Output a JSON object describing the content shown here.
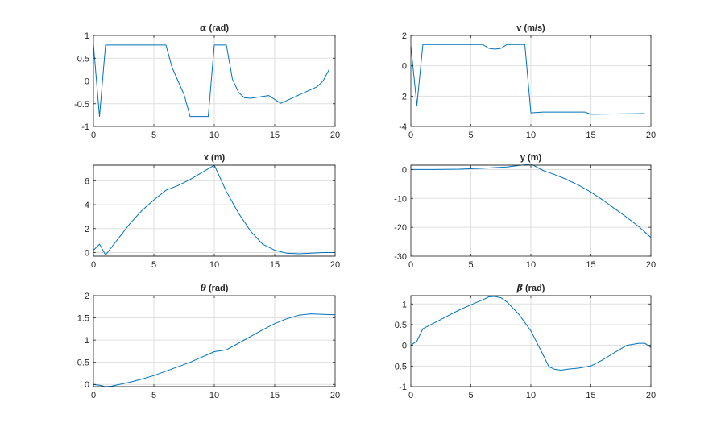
{
  "chart_data": [
    {
      "type": "line",
      "title_greek": "α",
      "title": " (rad)",
      "xlim": [
        0,
        20
      ],
      "ylim": [
        -1,
        1
      ],
      "xticks": [
        0,
        5,
        10,
        15,
        20
      ],
      "yticks": [
        -1,
        -0.5,
        0,
        0.5,
        1
      ],
      "grid": true,
      "color": "#0072BD",
      "series": [
        {
          "x": [
            0,
            0.5,
            1,
            6,
            6.5,
            7.5,
            8,
            9.5,
            10,
            11,
            11.5,
            12,
            12.5,
            13,
            14.5,
            15.5,
            18.5,
            19,
            19.5
          ],
          "y": [
            0.8,
            -0.78,
            0.79,
            0.79,
            0.3,
            -0.3,
            -0.78,
            -0.78,
            0.79,
            0.79,
            0.04,
            -0.25,
            -0.37,
            -0.38,
            -0.32,
            -0.49,
            -0.13,
            0.0,
            0.25
          ]
        }
      ]
    },
    {
      "type": "line",
      "title": "v (m/s)",
      "xlim": [
        0,
        20
      ],
      "ylim": [
        -4,
        2
      ],
      "xticks": [
        0,
        5,
        10,
        15,
        20
      ],
      "yticks": [
        -4,
        -2,
        0,
        2
      ],
      "grid": true,
      "color": "#0072BD",
      "series": [
        {
          "x": [
            0,
            0.5,
            1,
            6,
            6.5,
            7,
            7.5,
            8,
            9.5,
            10,
            11,
            14.5,
            15,
            19.5
          ],
          "y": [
            1.3,
            -2.6,
            1.4,
            1.4,
            1.15,
            1.1,
            1.15,
            1.4,
            1.4,
            -3.1,
            -3.05,
            -3.05,
            -3.2,
            -3.15
          ]
        }
      ]
    },
    {
      "type": "line",
      "title": "x (m)",
      "xlim": [
        0,
        20
      ],
      "ylim": [
        -0.3,
        7.3
      ],
      "xticks": [
        0,
        5,
        10,
        15,
        20
      ],
      "yticks": [
        0,
        2,
        4,
        6
      ],
      "grid": true,
      "color": "#0072BD",
      "series": [
        {
          "x": [
            0,
            0.5,
            1,
            2,
            3,
            4,
            5,
            6,
            7,
            8,
            9,
            10,
            11,
            12,
            13,
            14,
            15,
            16,
            17,
            18,
            19,
            20
          ],
          "y": [
            0.2,
            0.7,
            -0.2,
            1.1,
            2.4,
            3.5,
            4.4,
            5.2,
            5.6,
            6.1,
            6.7,
            7.3,
            5.1,
            3.3,
            1.8,
            0.7,
            0.2,
            -0.05,
            -0.1,
            -0.05,
            0.0,
            0.0
          ]
        }
      ]
    },
    {
      "type": "line",
      "title": "y (m)",
      "xlim": [
        0,
        20
      ],
      "ylim": [
        -30,
        1.5
      ],
      "xticks": [
        0,
        5,
        10,
        15,
        20
      ],
      "yticks": [
        -30,
        -20,
        -10,
        0
      ],
      "grid": true,
      "color": "#0072BD",
      "series": [
        {
          "x": [
            0,
            2,
            4,
            6,
            8,
            10,
            11,
            12,
            13,
            14,
            15,
            16,
            17,
            18,
            19,
            20
          ],
          "y": [
            0,
            0,
            0.1,
            0.4,
            0.9,
            1.9,
            -0.3,
            -1.8,
            -3.5,
            -5.5,
            -7.8,
            -10.6,
            -13.6,
            -16.6,
            -19.8,
            -23.5
          ]
        }
      ]
    },
    {
      "type": "line",
      "title_greek": "θ",
      "title": " (rad)",
      "xlim": [
        0,
        20
      ],
      "ylim": [
        -0.05,
        2
      ],
      "xticks": [
        0,
        5,
        10,
        15,
        20
      ],
      "yticks": [
        0,
        0.5,
        1,
        1.5,
        2
      ],
      "grid": true,
      "color": "#0072BD",
      "series": [
        {
          "x": [
            0,
            0.5,
            1,
            1.5,
            2,
            3,
            4,
            5,
            6,
            7,
            8,
            9,
            10,
            11,
            12,
            13,
            14,
            15,
            16,
            17,
            18,
            19,
            20
          ],
          "y": [
            0.0,
            -0.02,
            -0.05,
            -0.04,
            -0.01,
            0.05,
            0.12,
            0.2,
            0.3,
            0.4,
            0.5,
            0.62,
            0.74,
            0.78,
            0.93,
            1.08,
            1.23,
            1.37,
            1.48,
            1.56,
            1.59,
            1.58,
            1.57
          ]
        }
      ]
    },
    {
      "type": "line",
      "title_greek": "β",
      "title": " (rad)",
      "xlim": [
        0,
        20
      ],
      "ylim": [
        -1,
        1.2
      ],
      "xticks": [
        0,
        5,
        10,
        15,
        20
      ],
      "yticks": [
        -1,
        -0.5,
        0,
        0.5,
        1
      ],
      "grid": true,
      "color": "#0072BD",
      "series": [
        {
          "x": [
            0,
            0.5,
            1,
            2,
            3,
            4,
            5,
            6,
            6.5,
            7,
            7.5,
            8,
            9,
            10,
            11,
            11.5,
            12,
            12.5,
            13,
            14,
            15,
            16,
            17,
            18,
            19,
            19.5,
            20
          ],
          "y": [
            0.0,
            0.1,
            0.4,
            0.55,
            0.7,
            0.85,
            0.98,
            1.1,
            1.17,
            1.18,
            1.15,
            1.05,
            0.75,
            0.35,
            -0.22,
            -0.52,
            -0.58,
            -0.6,
            -0.58,
            -0.55,
            -0.5,
            -0.35,
            -0.17,
            0.0,
            0.05,
            0.05,
            -0.05
          ]
        }
      ]
    }
  ]
}
